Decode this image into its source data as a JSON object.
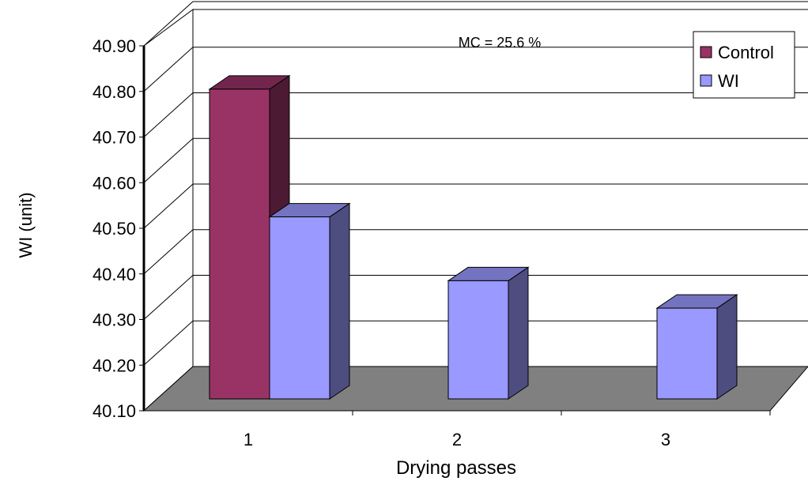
{
  "chart_data": {
    "type": "bar",
    "annotation": "MC = 25.6 %",
    "xlabel": "Drying passes",
    "ylabel": "WI (unit)",
    "categories": [
      "1",
      "2",
      "3"
    ],
    "ylim": [
      40.1,
      40.9
    ],
    "yticks": [
      "40.10",
      "40.20",
      "40.30",
      "40.40",
      "40.50",
      "40.60",
      "40.70",
      "40.80",
      "40.90"
    ],
    "grid": true,
    "legend_position": "top-right",
    "series": [
      {
        "name": "Control",
        "values": [
          40.85,
          null,
          null
        ],
        "color": "#993366"
      },
      {
        "name": "WI",
        "values": [
          40.57,
          40.43,
          40.37
        ],
        "color": "#9999FF"
      }
    ],
    "floor_color": "#808080",
    "wall_color": "#FFFFFF"
  }
}
